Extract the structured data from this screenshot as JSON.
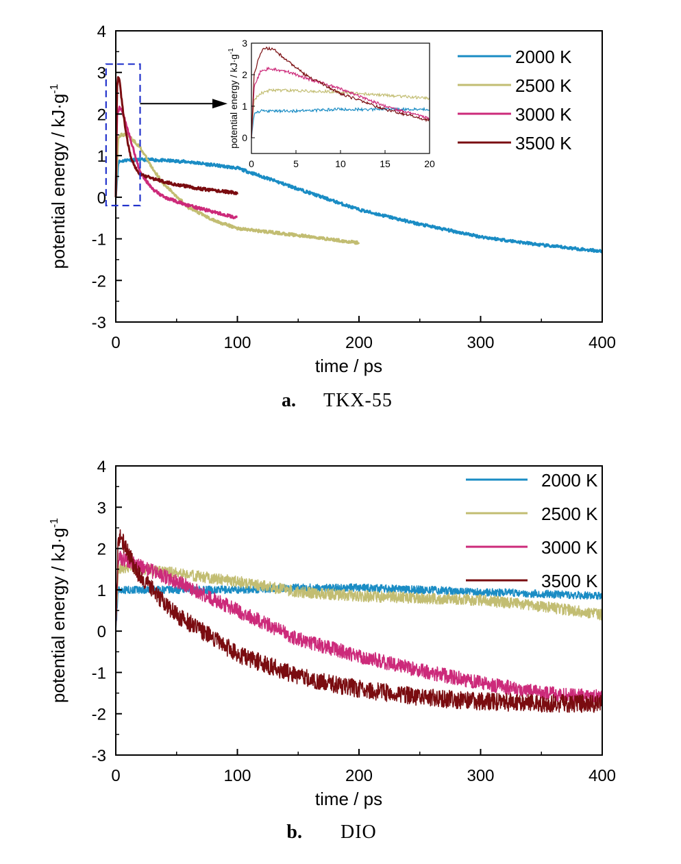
{
  "colors": {
    "2000 K": "#1a8cc4",
    "2500 K": "#c2bd72",
    "3000 K": "#cc2a7a",
    "3500 K": "#7a0c10",
    "box": "#2233cc"
  },
  "chart_data": [
    {
      "id": "a",
      "type": "line",
      "caption_letter": "a.",
      "caption_text": "TKX-55",
      "xlabel": "time / ps",
      "ylabel": "potential energy / kJ·g",
      "ylabel_sup": "-1",
      "xlim": [
        0,
        400
      ],
      "ylim": [
        -3,
        4
      ],
      "xticks": [
        0,
        100,
        200,
        300,
        400
      ],
      "yticks": [
        -3,
        -2,
        -1,
        0,
        1,
        2,
        3,
        4
      ],
      "legend_position": "top-right",
      "series": [
        {
          "name": "2000 K",
          "x": [
            0,
            2,
            10,
            30,
            60,
            100,
            130,
            160,
            200,
            250,
            300,
            350,
            400
          ],
          "y": [
            0.0,
            0.85,
            0.9,
            0.9,
            0.85,
            0.7,
            0.4,
            0.1,
            -0.3,
            -0.65,
            -0.95,
            -1.15,
            -1.3
          ]
        },
        {
          "name": "2500 K",
          "x": [
            0,
            2,
            5,
            10,
            15,
            20,
            30,
            40,
            60,
            80,
            100,
            130,
            160,
            200
          ],
          "y": [
            0.0,
            1.45,
            1.5,
            1.5,
            1.35,
            1.2,
            0.7,
            0.3,
            -0.25,
            -0.55,
            -0.75,
            -0.85,
            -0.95,
            -1.1
          ]
        },
        {
          "name": "3000 K",
          "x": [
            0,
            1,
            3,
            5,
            10,
            15,
            20,
            30,
            40,
            60,
            80,
            100
          ],
          "y": [
            0.0,
            2.0,
            2.15,
            2.1,
            1.6,
            1.1,
            0.6,
            0.2,
            0.0,
            -0.2,
            -0.35,
            -0.5
          ]
        },
        {
          "name": "3500 K",
          "x": [
            0,
            1,
            2,
            3,
            5,
            8,
            12,
            16,
            20,
            30,
            50,
            70,
            100
          ],
          "y": [
            0.0,
            2.6,
            2.9,
            2.85,
            2.3,
            1.6,
            1.0,
            0.7,
            0.55,
            0.45,
            0.3,
            0.2,
            0.1
          ]
        }
      ],
      "zoom_box": {
        "x": [
          -8,
          20
        ],
        "y": [
          -0.2,
          3.2
        ]
      },
      "inset": {
        "xlim": [
          0,
          20
        ],
        "ylim": [
          -0.5,
          3
        ],
        "xticks": [
          0,
          5,
          10,
          15,
          20
        ],
        "yticks": [
          0,
          1,
          2,
          3
        ],
        "ylabel": "potential energy / kJ·g",
        "ylabel_sup": "-1",
        "series": [
          {
            "name": "2000 K",
            "x": [
              0,
              0.3,
              1,
              3,
              5,
              10,
              15,
              20
            ],
            "y": [
              0.0,
              0.75,
              0.85,
              0.85,
              0.85,
              0.9,
              0.9,
              0.9
            ]
          },
          {
            "name": "2500 K",
            "x": [
              0,
              0.3,
              1,
              2,
              5,
              10,
              15,
              20
            ],
            "y": [
              0.0,
              1.2,
              1.4,
              1.5,
              1.5,
              1.45,
              1.35,
              1.25
            ]
          },
          {
            "name": "3000 K",
            "x": [
              0,
              0.3,
              1,
              2,
              4,
              6,
              10,
              15,
              20
            ],
            "y": [
              0.0,
              1.6,
              2.1,
              2.2,
              2.1,
              1.9,
              1.55,
              1.0,
              0.6
            ]
          },
          {
            "name": "3500 K",
            "x": [
              0,
              0.3,
              1,
              1.5,
              2.5,
              4,
              6,
              10,
              15,
              20
            ],
            "y": [
              0.0,
              2.0,
              2.7,
              2.85,
              2.8,
              2.45,
              2.0,
              1.4,
              0.9,
              0.55
            ]
          }
        ]
      }
    },
    {
      "id": "b",
      "type": "line",
      "caption_letter": "b.",
      "caption_text": "DIO",
      "xlabel": "time / ps",
      "ylabel": "potential energy / kJ·g",
      "ylabel_sup": "-1",
      "xlim": [
        0,
        400
      ],
      "ylim": [
        -3,
        4
      ],
      "xticks": [
        0,
        100,
        200,
        300,
        400
      ],
      "yticks": [
        -3,
        -2,
        -1,
        0,
        1,
        2,
        3,
        4
      ],
      "legend_position": "top-right",
      "series": [
        {
          "name": "2000 K",
          "x": [
            0,
            2,
            10,
            50,
            100,
            150,
            200,
            250,
            300,
            350,
            400
          ],
          "y": [
            0.0,
            1.0,
            1.0,
            1.0,
            1.0,
            1.05,
            1.05,
            1.0,
            0.95,
            0.9,
            0.85
          ]
        },
        {
          "name": "2500 K",
          "x": [
            0,
            2,
            10,
            50,
            100,
            150,
            200,
            250,
            300,
            350,
            400
          ],
          "y": [
            0.0,
            1.5,
            1.55,
            1.4,
            1.2,
            0.95,
            0.85,
            0.8,
            0.75,
            0.6,
            0.4
          ]
        },
        {
          "name": "3000 K",
          "x": [
            0,
            2,
            10,
            50,
            100,
            150,
            200,
            250,
            300,
            350,
            400
          ],
          "y": [
            0.0,
            1.8,
            1.7,
            1.2,
            0.5,
            -0.2,
            -0.6,
            -0.95,
            -1.25,
            -1.5,
            -1.6
          ]
        },
        {
          "name": "3500 K",
          "x": [
            0,
            2,
            5,
            20,
            50,
            100,
            150,
            200,
            250,
            300,
            350,
            400
          ],
          "y": [
            0.0,
            2.3,
            2.2,
            1.3,
            0.4,
            -0.55,
            -1.1,
            -1.4,
            -1.6,
            -1.7,
            -1.75,
            -1.75
          ]
        }
      ]
    }
  ]
}
